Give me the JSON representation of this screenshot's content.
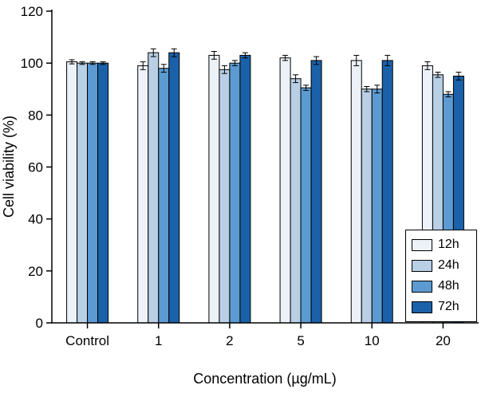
{
  "chart_data": {
    "type": "bar",
    "title": "",
    "xlabel": "Concentration (µg/mL)",
    "ylabel": "Cell viability (%)",
    "ylim": [
      0,
      120
    ],
    "ytick_step": 20,
    "yticks": [
      0,
      20,
      40,
      60,
      80,
      100,
      120
    ],
    "categories": [
      "Control",
      "1",
      "2",
      "5",
      "10",
      "20"
    ],
    "series": [
      {
        "name": "12h",
        "color": "#edf2f9",
        "values": [
          100.5,
          99,
          103,
          102,
          101,
          99
        ],
        "errors": [
          0.8,
          1.5,
          1.5,
          1,
          2,
          1.5
        ]
      },
      {
        "name": "24h",
        "color": "#b8cfe5",
        "values": [
          100,
          104,
          97.5,
          94,
          90,
          95.5
        ],
        "errors": [
          0.5,
          1.5,
          1.5,
          1.5,
          1,
          1
        ]
      },
      {
        "name": "48h",
        "color": "#5b9bd1",
        "values": [
          100,
          98,
          100,
          90.5,
          90,
          88
        ],
        "errors": [
          0.5,
          1.5,
          1,
          1,
          1.5,
          1
        ]
      },
      {
        "name": "72h",
        "color": "#1a61a9",
        "values": [
          100,
          104,
          103,
          101,
          101,
          95
        ],
        "errors": [
          0.5,
          1.5,
          1,
          1.5,
          2,
          1.5
        ]
      }
    ],
    "legend_position": "bottom-right",
    "grid": false,
    "axis_color": "#000000",
    "background": "#ffffff",
    "error_bars": true
  }
}
